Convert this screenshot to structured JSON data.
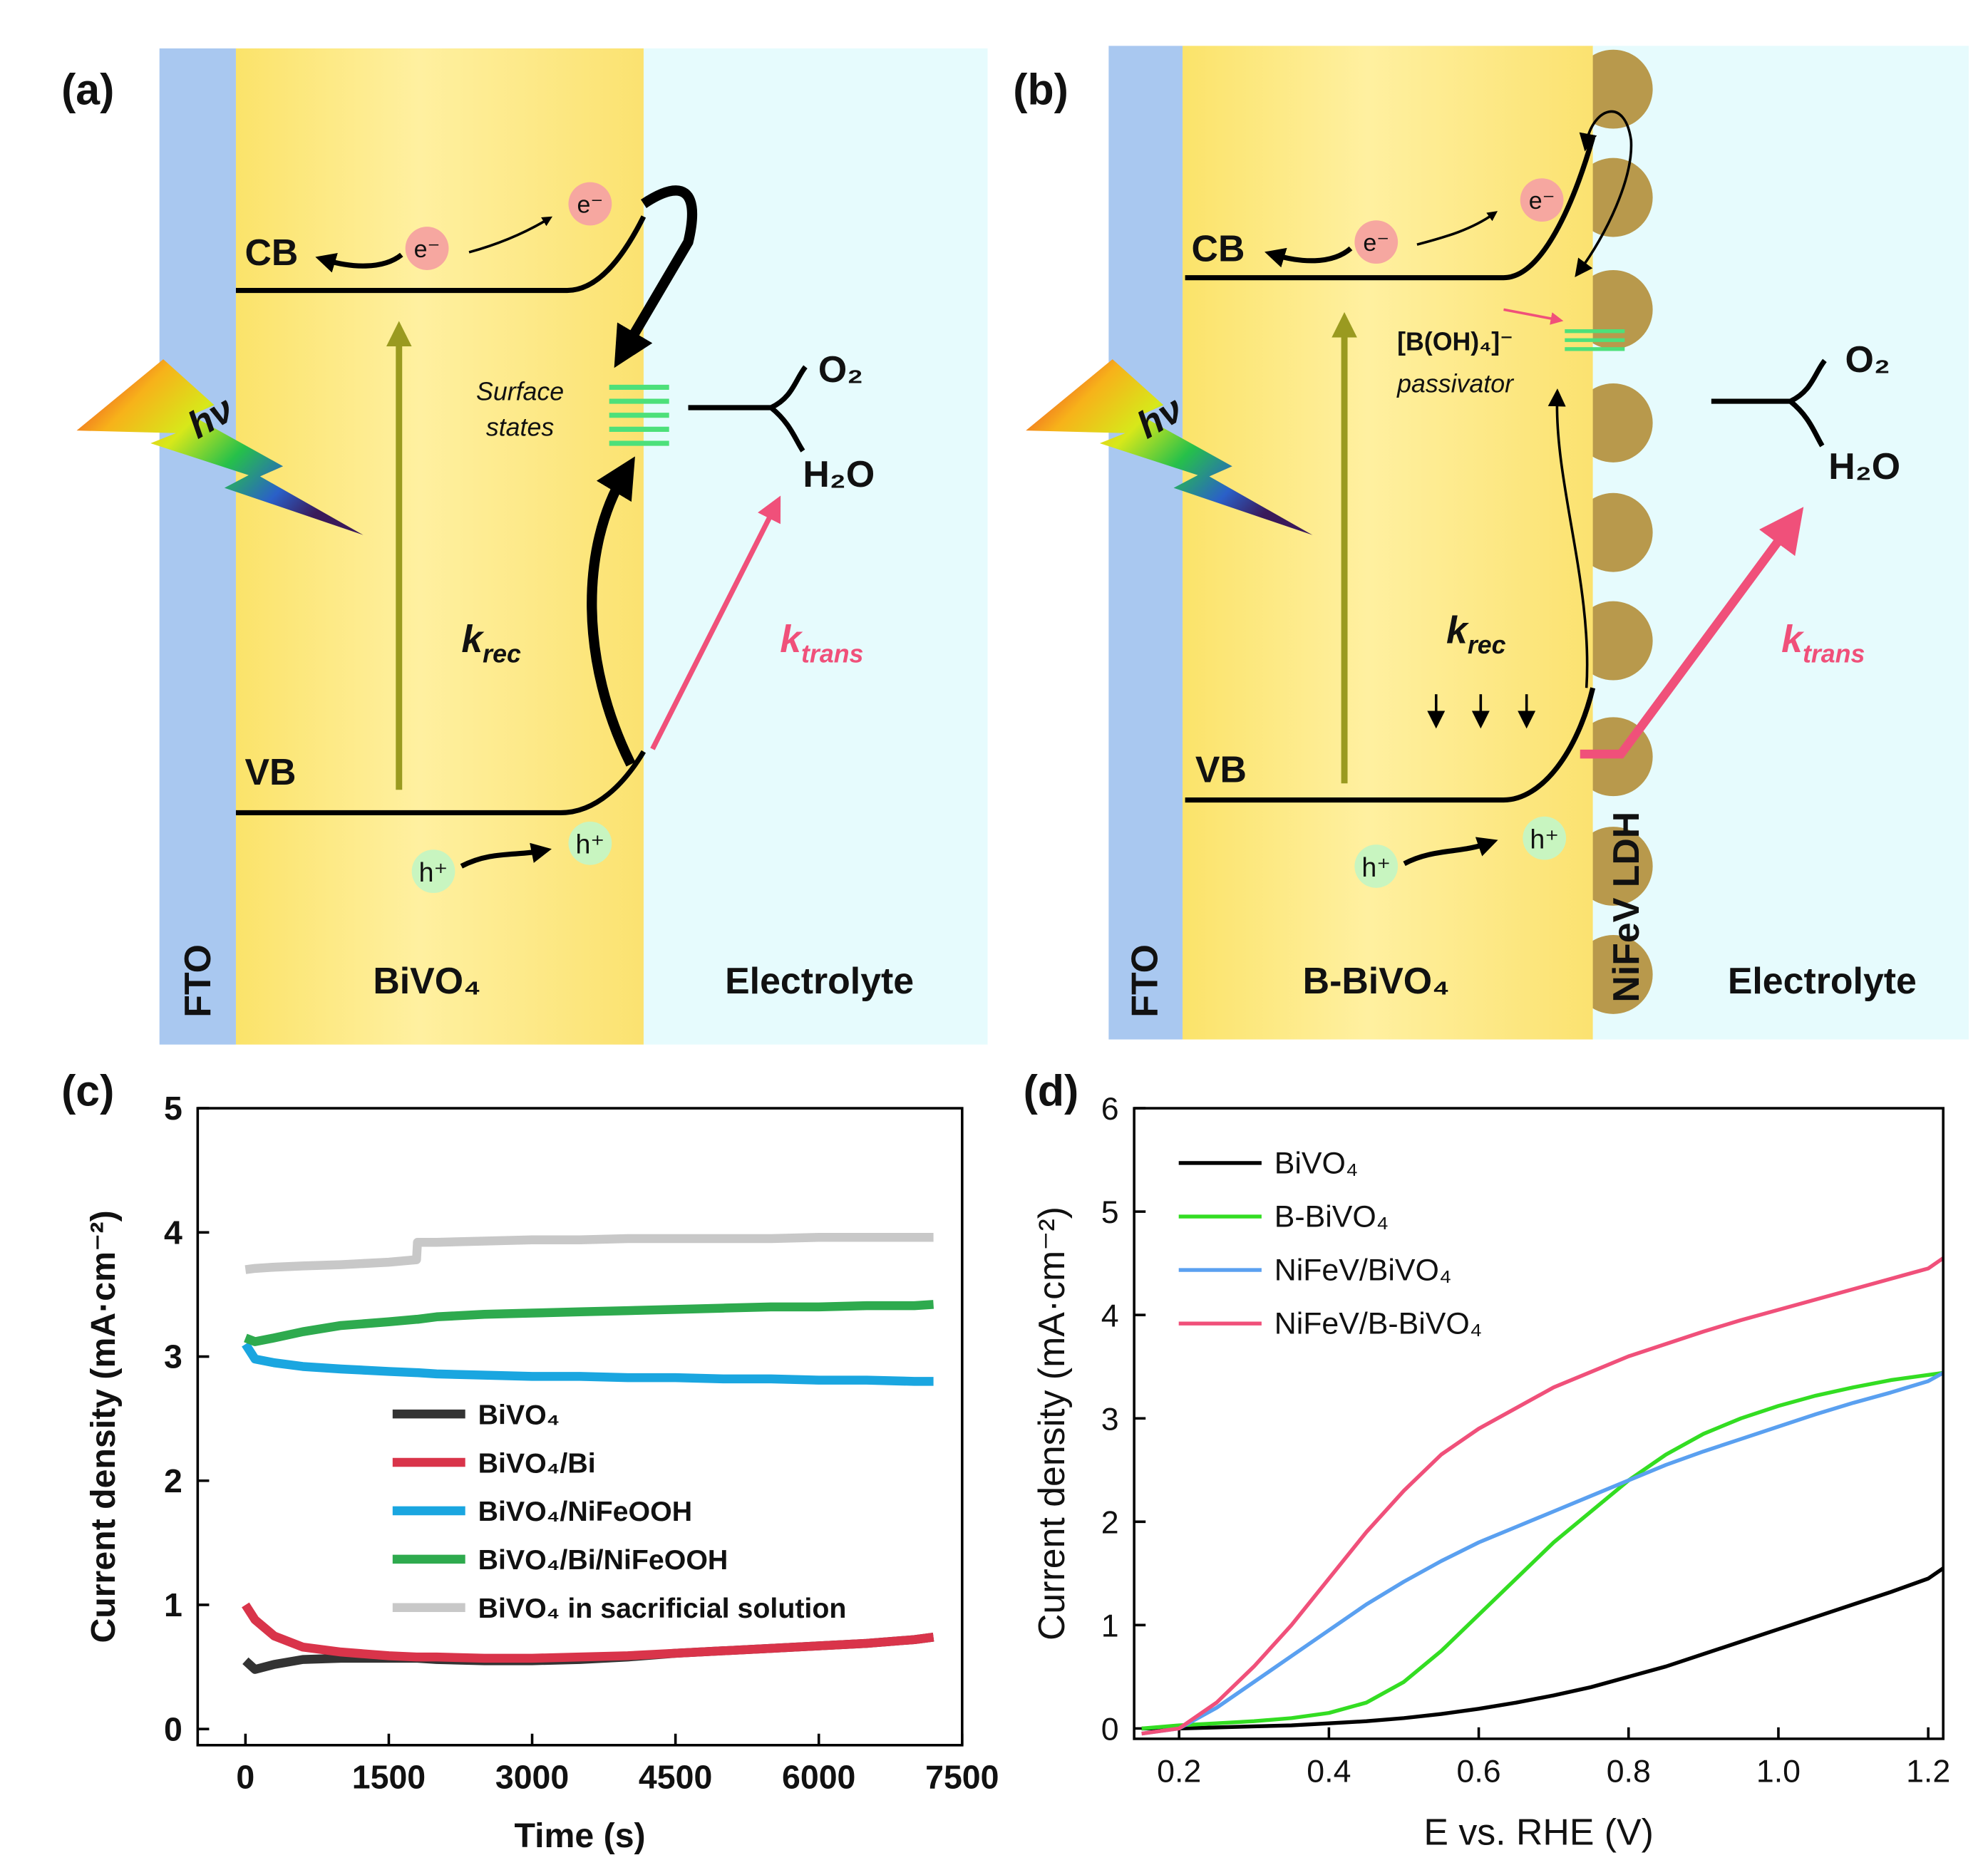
{
  "panels": {
    "a": {
      "label": "(a)",
      "cb": "CB",
      "vb": "VB",
      "electron_1": "e⁻",
      "electron_2": "e⁻",
      "hole_1": "h⁺",
      "hole_2": "h⁺",
      "surface_states": [
        "Surface",
        "states"
      ],
      "photon": "hν",
      "k_rec": {
        "k": "k",
        "sub": "rec"
      },
      "k_trans": {
        "k": "k",
        "sub": "trans"
      },
      "o2": "O₂",
      "h2o": "H₂O",
      "fto": "FTO",
      "absorber": "BiVO₄",
      "electrolyte": "Electrolyte"
    },
    "b": {
      "label": "(b)",
      "cb": "CB",
      "vb": "VB",
      "electron_1": "e⁻",
      "electron_2": "e⁻",
      "hole_1": "h⁺",
      "hole_2": "h⁺",
      "passivator_ion": "[B(OH)₄]⁻",
      "passivator": "passivator",
      "photon": "hν",
      "k_rec": {
        "k": "k",
        "sub": "rec"
      },
      "k_trans": {
        "k": "k",
        "sub": "trans"
      },
      "o2": "O₂",
      "h2o": "H₂O",
      "fto": "FTO",
      "absorber": "B-BiVO₄",
      "cocatalyst": "NiFeV LDH",
      "electrolyte": "Electrolyte"
    }
  },
  "chart_data": [
    {
      "type": "line",
      "label": "(c)",
      "xlabel": "Time (s)",
      "ylabel": "Current density (mA·cm⁻²)",
      "x": [
        0,
        100,
        300,
        600,
        1000,
        1500,
        1790,
        1800,
        2000,
        2500,
        3000,
        3500,
        4000,
        4500,
        5000,
        5500,
        6000,
        6500,
        7000,
        7200
      ],
      "xlim": [
        -500,
        7500
      ],
      "xticks": [
        0,
        1500,
        3000,
        4500,
        6000,
        7500
      ],
      "ylim": [
        -0.13,
        5
      ],
      "yticks": [
        0,
        1,
        2,
        3,
        4,
        5
      ],
      "legend": "lower center",
      "line_width": 7,
      "series": [
        {
          "name": "BiVO₄",
          "color": "#333333",
          "values": [
            0.55,
            0.48,
            0.52,
            0.56,
            0.57,
            0.57,
            0.57,
            0.57,
            0.56,
            0.55,
            0.55,
            0.56,
            0.58,
            0.61,
            0.63,
            0.65,
            0.67,
            0.69,
            0.72,
            0.74
          ]
        },
        {
          "name": "BiVO₄/Bi",
          "color": "#d9344a",
          "values": [
            1.0,
            0.88,
            0.75,
            0.66,
            0.62,
            0.59,
            0.58,
            0.58,
            0.58,
            0.57,
            0.57,
            0.58,
            0.59,
            0.61,
            0.63,
            0.65,
            0.67,
            0.69,
            0.72,
            0.74
          ]
        },
        {
          "name": "BiVO₄/NiFeOOH",
          "color": "#1aa6e0",
          "values": [
            3.1,
            2.98,
            2.95,
            2.92,
            2.9,
            2.88,
            2.87,
            2.87,
            2.86,
            2.85,
            2.84,
            2.84,
            2.83,
            2.83,
            2.82,
            2.82,
            2.81,
            2.81,
            2.8,
            2.8
          ]
        },
        {
          "name": "BiVO₄/Bi/NiFeOOH",
          "color": "#2eaa4e",
          "values": [
            3.15,
            3.12,
            3.15,
            3.2,
            3.25,
            3.28,
            3.3,
            3.3,
            3.32,
            3.34,
            3.35,
            3.36,
            3.37,
            3.38,
            3.39,
            3.4,
            3.4,
            3.41,
            3.41,
            3.42
          ]
        },
        {
          "name": "BiVO₄ in sacrificial solution",
          "color": "#c8c8c8",
          "values": [
            3.7,
            3.71,
            3.72,
            3.73,
            3.74,
            3.76,
            3.78,
            3.92,
            3.92,
            3.93,
            3.94,
            3.94,
            3.95,
            3.95,
            3.95,
            3.95,
            3.96,
            3.96,
            3.96,
            3.96
          ]
        }
      ]
    },
    {
      "type": "line",
      "label": "(d)",
      "xlabel": "E vs. RHE (V)",
      "ylabel": "Current density (mA·cm⁻²)",
      "x": [
        0.15,
        0.2,
        0.25,
        0.3,
        0.35,
        0.4,
        0.45,
        0.5,
        0.55,
        0.6,
        0.65,
        0.7,
        0.75,
        0.8,
        0.85,
        0.9,
        0.95,
        1.0,
        1.05,
        1.1,
        1.15,
        1.2,
        1.22
      ],
      "xlim": [
        0.14,
        1.22
      ],
      "xticks": [
        0.2,
        0.4,
        0.6,
        0.8,
        {
          "value": 1,
          "label": "1.0"
        },
        1.2
      ],
      "ylim": [
        -0.1,
        6
      ],
      "yticks": [
        0,
        1,
        2,
        3,
        4,
        5,
        6
      ],
      "legend": "upper left",
      "line_width": 3,
      "series": [
        {
          "name": "BiVO₄",
          "color": "#000000",
          "values": [
            0,
            0,
            0.01,
            0.02,
            0.03,
            0.05,
            0.07,
            0.1,
            0.14,
            0.19,
            0.25,
            0.32,
            0.4,
            0.5,
            0.6,
            0.72,
            0.84,
            0.96,
            1.08,
            1.2,
            1.32,
            1.45,
            1.55
          ]
        },
        {
          "name": "B-BiVO₄",
          "color": "#33dd22",
          "values": [
            0,
            0.03,
            0.05,
            0.07,
            0.1,
            0.15,
            0.25,
            0.45,
            0.75,
            1.1,
            1.45,
            1.8,
            2.1,
            2.4,
            2.65,
            2.85,
            3.0,
            3.12,
            3.22,
            3.3,
            3.37,
            3.42,
            3.44
          ]
        },
        {
          "name": "NiFeV/BiVO₄",
          "color": "#5aa0f0",
          "values": [
            -0.05,
            0,
            0.2,
            0.45,
            0.7,
            0.95,
            1.2,
            1.42,
            1.62,
            1.8,
            1.95,
            2.1,
            2.25,
            2.4,
            2.55,
            2.68,
            2.8,
            2.92,
            3.04,
            3.15,
            3.25,
            3.36,
            3.44
          ]
        },
        {
          "name": "NiFeV/B-BiVO₄",
          "color": "#f0507a",
          "values": [
            -0.05,
            0,
            0.25,
            0.6,
            1.0,
            1.45,
            1.9,
            2.3,
            2.65,
            2.9,
            3.1,
            3.3,
            3.45,
            3.6,
            3.72,
            3.84,
            3.95,
            4.05,
            4.15,
            4.25,
            4.35,
            4.45,
            4.55
          ]
        }
      ]
    }
  ]
}
